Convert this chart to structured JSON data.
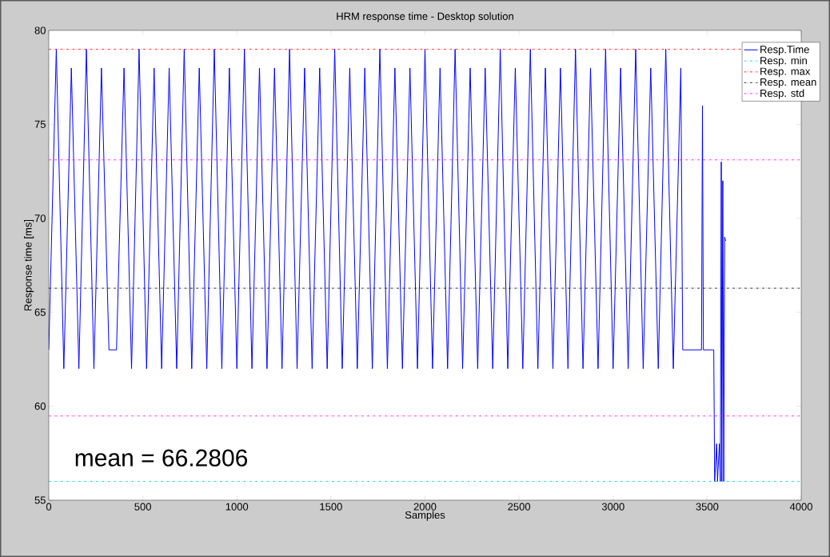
{
  "chart_data": {
    "type": "line",
    "title": "HRM response time - Desktop solution",
    "xlabel": "Samples",
    "ylabel": "Response time [ms]",
    "x": [
      0,
      40,
      80,
      120,
      160,
      200,
      240,
      280,
      320,
      360,
      400,
      440,
      480,
      520,
      560,
      600,
      640,
      680,
      720,
      760,
      800,
      840,
      880,
      920,
      960,
      1000,
      1040,
      1080,
      1120,
      1160,
      1200,
      1240,
      1280,
      1320,
      1360,
      1400,
      1440,
      1480,
      1520,
      1560,
      1600,
      1640,
      1680,
      1720,
      1760,
      1800,
      1840,
      1880,
      1920,
      1960,
      2000,
      2040,
      2080,
      2120,
      2160,
      2200,
      2240,
      2280,
      2320,
      2360,
      2400,
      2440,
      2480,
      2520,
      2560,
      2600,
      2640,
      2680,
      2720,
      2760,
      2800,
      2840,
      2880,
      2920,
      2960,
      3000,
      3040,
      3080,
      3120,
      3160,
      3200,
      3240,
      3280,
      3320,
      3360,
      3370,
      3470,
      3475,
      3480,
      3535,
      3540,
      3550,
      3555,
      3565,
      3570,
      3575,
      3578,
      3583,
      3588,
      3593,
      3598
    ],
    "series": [
      {
        "name": "Resp.Time",
        "color": "#0000ff",
        "values": [
          63,
          79,
          62,
          78,
          62,
          79,
          62,
          78,
          63,
          63,
          78,
          62,
          79,
          62,
          78,
          62,
          78,
          62,
          79,
          62,
          78,
          62,
          79,
          62,
          78,
          62,
          79,
          62,
          78,
          62,
          78,
          62,
          79,
          62,
          78,
          62,
          78,
          62,
          79,
          62,
          78,
          62,
          78,
          62,
          79,
          62,
          78,
          62,
          78,
          62,
          79,
          62,
          78,
          62,
          79,
          62,
          78,
          62,
          78,
          62,
          79,
          62,
          78,
          62,
          79,
          62,
          78,
          62,
          78,
          62,
          79,
          62,
          78,
          62,
          79,
          62,
          78,
          62,
          79,
          62,
          78,
          62,
          79,
          62,
          78,
          63,
          63,
          76,
          63,
          63,
          56,
          58,
          56,
          58,
          56,
          73,
          56,
          72,
          56,
          69,
          68.8
        ]
      }
    ],
    "xlim": [
      0,
      4000
    ],
    "ylim": [
      55,
      80
    ],
    "xticks": [
      0,
      500,
      1000,
      1500,
      2000,
      2500,
      3000,
      3500,
      4000
    ],
    "yticks": [
      55,
      60,
      65,
      70,
      75,
      80
    ],
    "ref_lines": [
      {
        "axis": "y",
        "value": 56,
        "label": "Resp. min",
        "color": "#00cccc",
        "line_style": "dashed"
      },
      {
        "axis": "y",
        "value": 79,
        "label": "Resp. max",
        "color": "#ff0000",
        "line_style": "dashed"
      },
      {
        "axis": "y",
        "value": 66.28,
        "label": "Resp. mean",
        "color": "#000000",
        "line_style": "dashed"
      },
      {
        "axis": "y",
        "value": 73.11,
        "label": "Resp. std",
        "color": "#ff00ff",
        "line_style": "dashed"
      },
      {
        "axis": "y",
        "value": 59.48,
        "color": "#ff00ff",
        "line_style": "dashed"
      }
    ],
    "annotations": [
      "mean = 66.2806"
    ],
    "legend": "top right"
  }
}
